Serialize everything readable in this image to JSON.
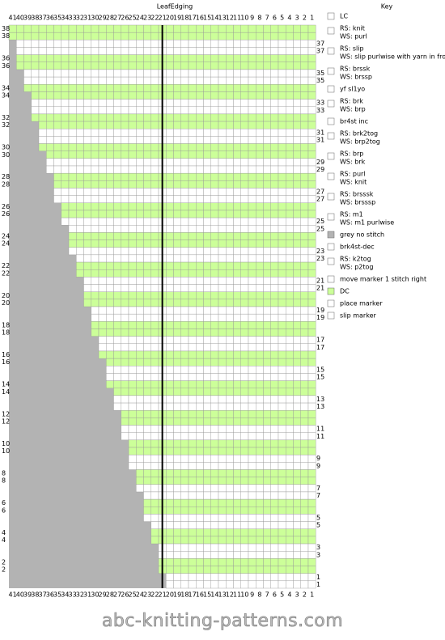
{
  "header": {
    "title": "LeafEdging",
    "key_title": "Key"
  },
  "columns": [
    41,
    40,
    39,
    38,
    37,
    36,
    35,
    34,
    33,
    32,
    31,
    30,
    29,
    28,
    27,
    26,
    25,
    24,
    23,
    22,
    21,
    20,
    19,
    18,
    17,
    16,
    15,
    14,
    13,
    12,
    11,
    10,
    9,
    8,
    7,
    6,
    5,
    4,
    3,
    2,
    1
  ],
  "left_rows": [
    38,
    38,
    36,
    36,
    34,
    34,
    32,
    32,
    30,
    30,
    28,
    28,
    26,
    26,
    24,
    24,
    22,
    22,
    20,
    20,
    18,
    18,
    16,
    16,
    14,
    14,
    12,
    12,
    10,
    10,
    8,
    8,
    6,
    6,
    4,
    4,
    2,
    2
  ],
  "right_rows": [
    37,
    37,
    35,
    35,
    33,
    33,
    31,
    31,
    29,
    29,
    27,
    27,
    25,
    25,
    23,
    23,
    21,
    21,
    19,
    19,
    17,
    17,
    15,
    15,
    13,
    13,
    11,
    11,
    9,
    9,
    7,
    7,
    5,
    5,
    3,
    3,
    1,
    1
  ],
  "key": {
    "items": [
      {
        "lines": [
          "LC"
        ]
      },
      {
        "lines": [
          "RS: knit",
          "WS: purl"
        ]
      },
      {
        "lines": [
          "RS: slip",
          "WS: slip purlwise with yarn in front"
        ]
      },
      {
        "lines": [
          "RS: brssk",
          "WS: brssp"
        ]
      },
      {
        "lines": [
          "yf sl1yo"
        ]
      },
      {
        "lines": [
          "RS: brk",
          "WS: brp"
        ]
      },
      {
        "lines": [
          "br4st inc"
        ]
      },
      {
        "lines": [
          "RS: brk2tog",
          "WS: brp2tog"
        ]
      },
      {
        "lines": [
          "RS: brp",
          "WS: brk"
        ]
      },
      {
        "lines": [
          "RS: purl",
          "WS: knit"
        ]
      },
      {
        "lines": [
          "RS: brsssk",
          "WS: brsssp"
        ]
      },
      {
        "lines": [
          "RS: m1",
          "WS: m1 purlwise"
        ]
      },
      {
        "lines": [
          "grey no stitch"
        ]
      },
      {
        "lines": [
          "brk4st-dec"
        ]
      },
      {
        "lines": [
          "RS: k2tog",
          "WS: p2tog"
        ]
      },
      {
        "lines": [
          "move marker 1 stitch right"
        ]
      },
      {
        "lines": [
          "DC"
        ]
      },
      {
        "lines": [
          "place marker"
        ]
      },
      {
        "lines": [
          "slip marker"
        ]
      }
    ]
  },
  "footer": {
    "text": "abc-knitting-patterns.com"
  }
}
